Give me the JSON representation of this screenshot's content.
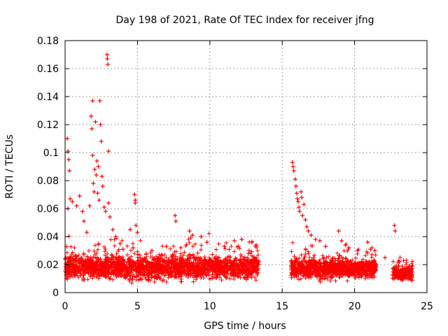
{
  "chart_data": {
    "type": "scatter",
    "title": "Day 198 of 2021, Rate Of TEC Index for receiver jfng",
    "xlabel": "GPS time / hours",
    "ylabel": "ROTI / TECUs",
    "xlim": [
      0,
      25
    ],
    "ylim": [
      0,
      0.18
    ],
    "xticks": [
      0,
      5,
      10,
      15,
      20,
      25
    ],
    "xtick_labels": [
      "0",
      "5",
      "10",
      "15",
      "20",
      "25"
    ],
    "yticks": [
      0,
      0.02,
      0.04,
      0.06,
      0.08,
      0.1,
      0.12,
      0.14,
      0.16,
      0.18
    ],
    "ytick_labels": [
      "0",
      "0.02",
      "0.04",
      "0.06",
      "0.08",
      "0.1",
      "0.12",
      "0.14",
      "0.16",
      "0.18"
    ],
    "grid": true,
    "marker": "+",
    "marker_color": "#ff0000",
    "segments": [
      {
        "start_hour": 0.0,
        "end_hour": 13.4,
        "median_roti": 0.018,
        "spread_roti": 0.012
      },
      {
        "start_hour": 15.6,
        "end_hour": 21.5,
        "median_roti": 0.017,
        "spread_roti": 0.01
      },
      {
        "start_hour": 22.6,
        "end_hour": 24.0,
        "median_roti": 0.014,
        "spread_roti": 0.007
      }
    ],
    "highlight_points": [
      {
        "x": 0.15,
        "y": 0.11
      },
      {
        "x": 0.2,
        "y": 0.101
      },
      {
        "x": 0.3,
        "y": 0.087
      },
      {
        "x": 0.35,
        "y": 0.067
      },
      {
        "x": 0.25,
        "y": 0.095
      },
      {
        "x": 0.2,
        "y": 0.06
      },
      {
        "x": 0.5,
        "y": 0.065
      },
      {
        "x": 0.8,
        "y": 0.062
      },
      {
        "x": 1.0,
        "y": 0.069
      },
      {
        "x": 1.2,
        "y": 0.058
      },
      {
        "x": 1.3,
        "y": 0.051
      },
      {
        "x": 1.5,
        "y": 0.043
      },
      {
        "x": 1.7,
        "y": 0.062
      },
      {
        "x": 1.8,
        "y": 0.126
      },
      {
        "x": 1.85,
        "y": 0.117
      },
      {
        "x": 1.9,
        "y": 0.137
      },
      {
        "x": 1.9,
        "y": 0.098
      },
      {
        "x": 1.95,
        "y": 0.078
      },
      {
        "x": 2.0,
        "y": 0.072
      },
      {
        "x": 2.05,
        "y": 0.088
      },
      {
        "x": 2.1,
        "y": 0.122
      },
      {
        "x": 2.15,
        "y": 0.084
      },
      {
        "x": 2.2,
        "y": 0.094
      },
      {
        "x": 2.25,
        "y": 0.071
      },
      {
        "x": 2.3,
        "y": 0.09
      },
      {
        "x": 2.35,
        "y": 0.066
      },
      {
        "x": 2.4,
        "y": 0.137
      },
      {
        "x": 2.45,
        "y": 0.12
      },
      {
        "x": 2.5,
        "y": 0.108
      },
      {
        "x": 2.55,
        "y": 0.083
      },
      {
        "x": 2.6,
        "y": 0.076
      },
      {
        "x": 2.7,
        "y": 0.061
      },
      {
        "x": 2.8,
        "y": 0.058
      },
      {
        "x": 2.9,
        "y": 0.17
      },
      {
        "x": 2.92,
        "y": 0.167
      },
      {
        "x": 2.95,
        "y": 0.163
      },
      {
        "x": 3.0,
        "y": 0.101
      },
      {
        "x": 3.0,
        "y": 0.064
      },
      {
        "x": 3.1,
        "y": 0.054
      },
      {
        "x": 3.3,
        "y": 0.045
      },
      {
        "x": 3.5,
        "y": 0.04
      },
      {
        "x": 3.8,
        "y": 0.035
      },
      {
        "x": 4.0,
        "y": 0.031
      },
      {
        "x": 4.5,
        "y": 0.045
      },
      {
        "x": 4.7,
        "y": 0.032
      },
      {
        "x": 4.8,
        "y": 0.07
      },
      {
        "x": 4.85,
        "y": 0.066
      },
      {
        "x": 4.85,
        "y": 0.064
      },
      {
        "x": 4.9,
        "y": 0.048
      },
      {
        "x": 5.0,
        "y": 0.043
      },
      {
        "x": 6.0,
        "y": 0.03
      },
      {
        "x": 7.0,
        "y": 0.033
      },
      {
        "x": 7.6,
        "y": 0.055
      },
      {
        "x": 7.65,
        "y": 0.051
      },
      {
        "x": 8.0,
        "y": 0.032
      },
      {
        "x": 8.6,
        "y": 0.044
      },
      {
        "x": 8.8,
        "y": 0.041
      },
      {
        "x": 9.4,
        "y": 0.04
      },
      {
        "x": 9.8,
        "y": 0.036
      },
      {
        "x": 11.0,
        "y": 0.033
      },
      {
        "x": 11.7,
        "y": 0.037
      },
      {
        "x": 12.2,
        "y": 0.038
      },
      {
        "x": 12.9,
        "y": 0.036
      },
      {
        "x": 13.2,
        "y": 0.034
      },
      {
        "x": 15.7,
        "y": 0.093
      },
      {
        "x": 15.75,
        "y": 0.09
      },
      {
        "x": 15.8,
        "y": 0.087
      },
      {
        "x": 15.9,
        "y": 0.081
      },
      {
        "x": 15.95,
        "y": 0.076
      },
      {
        "x": 16.0,
        "y": 0.071
      },
      {
        "x": 16.05,
        "y": 0.067
      },
      {
        "x": 16.1,
        "y": 0.065
      },
      {
        "x": 16.15,
        "y": 0.061
      },
      {
        "x": 16.2,
        "y": 0.058
      },
      {
        "x": 16.3,
        "y": 0.072
      },
      {
        "x": 16.35,
        "y": 0.068
      },
      {
        "x": 16.4,
        "y": 0.055
      },
      {
        "x": 16.5,
        "y": 0.063
      },
      {
        "x": 16.6,
        "y": 0.052
      },
      {
        "x": 16.7,
        "y": 0.047
      },
      {
        "x": 16.8,
        "y": 0.044
      },
      {
        "x": 17.0,
        "y": 0.041
      },
      {
        "x": 17.3,
        "y": 0.038
      },
      {
        "x": 17.6,
        "y": 0.037
      },
      {
        "x": 18.0,
        "y": 0.033
      },
      {
        "x": 18.9,
        "y": 0.044
      },
      {
        "x": 19.1,
        "y": 0.037
      },
      {
        "x": 19.6,
        "y": 0.032
      },
      {
        "x": 20.2,
        "y": 0.03
      },
      {
        "x": 20.9,
        "y": 0.036
      },
      {
        "x": 21.1,
        "y": 0.031
      },
      {
        "x": 21.4,
        "y": 0.03
      },
      {
        "x": 22.75,
        "y": 0.048
      },
      {
        "x": 22.8,
        "y": 0.044
      },
      {
        "x": 22.1,
        "y": 0.025
      },
      {
        "x": 23.1,
        "y": 0.022
      },
      {
        "x": 23.8,
        "y": 0.019
      }
    ]
  }
}
